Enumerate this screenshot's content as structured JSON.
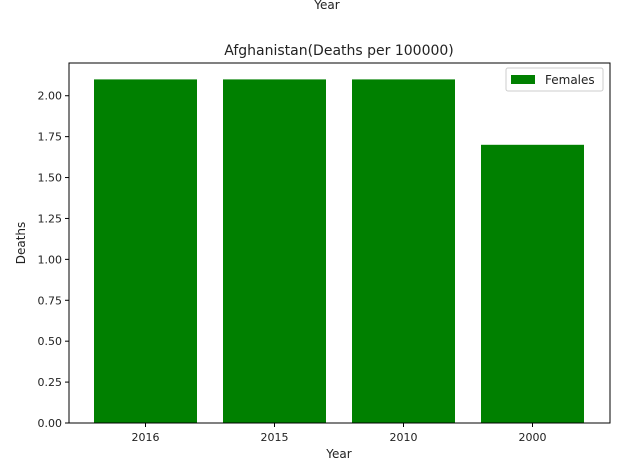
{
  "chart_data": {
    "type": "bar",
    "title": "Afghanistan(Deaths per 100000)",
    "top_label": "Year",
    "xlabel": "Year",
    "ylabel": "Deaths",
    "categories": [
      "2016",
      "2015",
      "2010",
      "2000"
    ],
    "series": [
      {
        "name": "Females",
        "values": [
          2.1,
          2.1,
          2.1,
          1.7
        ],
        "color": "#008000"
      }
    ],
    "ylim": [
      0,
      2.2
    ],
    "yticks": [
      0.0,
      0.25,
      0.5,
      0.75,
      1.0,
      1.25,
      1.5,
      1.75,
      2.0
    ],
    "ytick_labels": [
      "0.00",
      "0.25",
      "0.50",
      "0.75",
      "1.00",
      "1.25",
      "1.50",
      "1.75",
      "2.00"
    ],
    "grid": false,
    "legend_position": "top-right"
  }
}
